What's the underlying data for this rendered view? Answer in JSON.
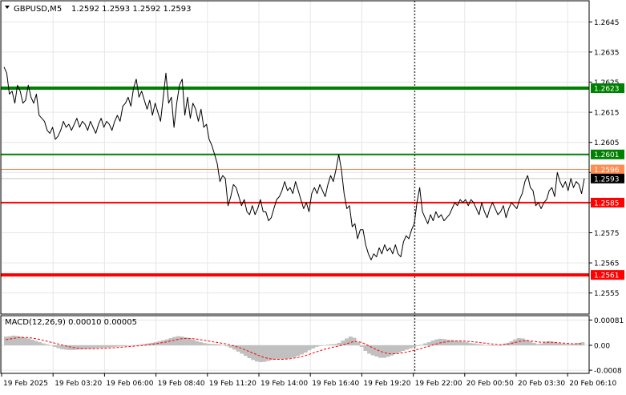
{
  "chart_data": [
    {
      "type": "line",
      "title": "GBPUSD,M5",
      "ohlc_readout": "1.2592 1.2593 1.2592 1.2593",
      "ylim": [
        1.2548,
        1.2652
      ],
      "yticks": [
        "1.2645",
        "1.2635",
        "1.2625",
        "1.2615",
        "1.2605",
        "1.2595",
        "1.2585",
        "1.2575",
        "1.2565",
        "1.2555"
      ],
      "xticks": [
        "19 Feb 2025",
        "19 Feb 03:20",
        "19 Feb 06:00",
        "19 Feb 08:40",
        "19 Feb 11:20",
        "19 Feb 14:00",
        "19 Feb 16:40",
        "19 Feb 19:20",
        "19 Feb 22:00",
        "20 Feb 00:50",
        "20 Feb 03:30",
        "20 Feb 06:10"
      ],
      "grid": true,
      "period_separator_after": "19 Feb 22:00",
      "current_price": 1.2593,
      "levels": [
        {
          "price": 1.2623,
          "label": "1.2623",
          "color": "#008000",
          "width": 4
        },
        {
          "price": 1.2601,
          "label": "1.2601",
          "color": "#008000",
          "width": 2
        },
        {
          "price": 1.2596,
          "label": "1.2596",
          "color": "#ff8c50",
          "width": 1
        },
        {
          "price": 1.2585,
          "label": "1.2585",
          "color": "#ff0000",
          "width": 2
        },
        {
          "price": 1.2561,
          "label": "1.2561",
          "color": "#ff0000",
          "width": 4
        }
      ],
      "series": [
        {
          "values": [
            1.263,
            1.2628,
            1.2621,
            1.2622,
            1.2618,
            1.2624,
            1.2622,
            1.2618,
            1.2619,
            1.2624,
            1.262,
            1.2618,
            1.2621,
            1.2614,
            1.2613,
            1.2612,
            1.2609,
            1.2608,
            1.261,
            1.2606,
            1.2607,
            1.2609,
            1.2612,
            1.261,
            1.2611,
            1.2609,
            1.2611,
            1.2613,
            1.261,
            1.2612,
            1.2611,
            1.2609,
            1.2612,
            1.261,
            1.2608,
            1.2611,
            1.2613,
            1.261,
            1.2612,
            1.2611,
            1.2609,
            1.2612,
            1.2614,
            1.2612,
            1.2617,
            1.2618,
            1.262,
            1.2617,
            1.2623,
            1.2626,
            1.262,
            1.2622,
            1.2619,
            1.2616,
            1.2619,
            1.2614,
            1.2618,
            1.2615,
            1.2612,
            1.262,
            1.2628,
            1.2618,
            1.262,
            1.261,
            1.2618,
            1.2624,
            1.2626,
            1.2614,
            1.262,
            1.2613,
            1.2618,
            1.2616,
            1.2612,
            1.2616,
            1.261,
            1.2611,
            1.2606,
            1.2604,
            1.2601,
            1.2598,
            1.2592,
            1.2594,
            1.2593,
            1.2584,
            1.2587,
            1.2591,
            1.259,
            1.2587,
            1.2584,
            1.2586,
            1.2582,
            1.2581,
            1.2584,
            1.2581,
            1.2583,
            1.2586,
            1.2582,
            1.2582,
            1.2579,
            1.258,
            1.2583,
            1.2586,
            1.2587,
            1.2589,
            1.2592,
            1.2589,
            1.259,
            1.2588,
            1.2592,
            1.2589,
            1.2586,
            1.2583,
            1.2585,
            1.2582,
            1.2588,
            1.259,
            1.2588,
            1.2591,
            1.2589,
            1.2587,
            1.2591,
            1.2594,
            1.2592,
            1.2596,
            1.2601,
            1.2596,
            1.2588,
            1.2583,
            1.2584,
            1.2577,
            1.2578,
            1.2573,
            1.2576,
            1.2576,
            1.2571,
            1.2568,
            1.2566,
            1.2568,
            1.2567,
            1.257,
            1.2568,
            1.2571,
            1.2569,
            1.257,
            1.2568,
            1.2571,
            1.2568,
            1.2567,
            1.2572,
            1.2574,
            1.2573,
            1.2576,
            1.2578,
            1.2585,
            1.259,
            1.2582,
            1.258,
            1.2578,
            1.2581,
            1.2579,
            1.2582,
            1.258,
            1.2581,
            1.2579,
            1.258,
            1.2581,
            1.2583,
            1.2585,
            1.2584,
            1.2586,
            1.2585,
            1.2586,
            1.2584,
            1.2586,
            1.2585,
            1.2583,
            1.2581,
            1.2585,
            1.2582,
            1.258,
            1.2583,
            1.2585,
            1.2583,
            1.2581,
            1.2582,
            1.2584,
            1.258,
            1.2583,
            1.2585,
            1.2584,
            1.2583,
            1.2586,
            1.2588,
            1.2592,
            1.2594,
            1.259,
            1.2589,
            1.2584,
            1.2585,
            1.2583,
            1.2585,
            1.2586,
            1.2589,
            1.259,
            1.2587,
            1.2595,
            1.2592,
            1.259,
            1.2592,
            1.2589,
            1.2593,
            1.259,
            1.2592,
            1.2591,
            1.2588,
            1.2593
          ]
        }
      ]
    },
    {
      "type": "area",
      "title": "MACD(12,26,9) 0.00010 0.00005",
      "ylim": [
        -0.0009,
        0.00095
      ],
      "yticks": [
        "0.00081",
        "0.00",
        "-0.0008"
      ],
      "series": [
        {
          "name": "MACD",
          "values": [
            0.00028,
            0.00029,
            0.00031,
            0.0003,
            0.00028,
            0.00025,
            0.00022,
            0.00018,
            0.00014,
            0.0001,
            6e-05,
            3e-05,
            -1e-05,
            -5e-05,
            -9e-05,
            -0.00012,
            -0.00014,
            -0.00015,
            -0.00015,
            -0.00014,
            -0.00013,
            -0.00012,
            -0.00011,
            -0.0001,
            -9e-05,
            -8e-05,
            -8e-05,
            -7e-05,
            -6e-05,
            -5e-05,
            -4e-05,
            -3e-05,
            -2e-05,
            -1e-05,
            0.0,
            1e-05,
            2e-05,
            4e-05,
            6e-05,
            8e-05,
            0.0001,
            0.00013,
            0.00016,
            0.00019,
            0.00023,
            0.00027,
            0.00029,
            0.00028,
            0.00025,
            0.00022,
            0.00018,
            0.00014,
            0.0001,
            7e-05,
            5e-05,
            4e-05,
            4e-05,
            3e-05,
            1e-05,
            -3e-05,
            -8e-05,
            -0.00014,
            -0.0002,
            -0.00027,
            -0.00034,
            -0.00041,
            -0.00047,
            -0.00052,
            -0.00054,
            -0.00053,
            -0.0005,
            -0.00047,
            -0.00045,
            -0.00044,
            -0.00044,
            -0.00043,
            -0.00041,
            -0.00038,
            -0.00034,
            -0.00029,
            -0.00023,
            -0.00016,
            -0.0001,
            -5e-05,
            -2e-05,
            0.0,
            2e-05,
            3e-05,
            4e-05,
            8e-05,
            0.00015,
            0.00022,
            0.00028,
            0.00024,
            0.0001,
            -5e-05,
            -0.00018,
            -0.00027,
            -0.00032,
            -0.00036,
            -0.0004,
            -0.0004,
            -0.00037,
            -0.00033,
            -0.00028,
            -0.00023,
            -0.00018,
            -0.00014,
            -0.0001,
            -6e-05,
            -2e-05,
            2e-05,
            6e-05,
            0.0001,
            0.00015,
            0.00019,
            0.00021,
            0.0002,
            0.00018,
            0.00017,
            0.00015,
            0.00014,
            0.00012,
            0.0001,
            7e-05,
            6e-05,
            4e-05,
            3e-05,
            1e-05,
            -1e-05,
            -2e-05,
            -1e-05,
            0.0,
            3e-05,
            7e-05,
            0.00013,
            0.00019,
            0.00023,
            0.00022,
            0.00018,
            0.00013,
            8e-05,
            4e-05,
            6e-05,
            0.00011,
            0.00013,
            0.00011,
            8e-05,
            6e-05,
            5e-05,
            4e-05,
            3e-05,
            5e-05,
            8e-05,
            0.0001
          ]
        },
        {
          "name": "Signal",
          "values": [
            0.00018,
            0.0002,
            0.00022,
            0.00024,
            0.00025,
            0.00025,
            0.00025,
            0.00023,
            0.00021,
            0.00019,
            0.00016,
            0.00013,
            0.0001,
            7e-05,
            4e-05,
            1e-05,
            -2e-05,
            -5e-05,
            -7e-05,
            -9e-05,
            -0.0001,
            -0.00011,
            -0.00011,
            -0.00011,
            -0.00011,
            -0.0001,
            -0.0001,
            -9e-05,
            -8e-05,
            -8e-05,
            -7e-05,
            -6e-05,
            -5e-05,
            -4e-05,
            -3e-05,
            -2e-05,
            -1e-05,
            0.0,
            2e-05,
            3e-05,
            5e-05,
            7e-05,
            9e-05,
            0.00011,
            0.00014,
            0.00016,
            0.00019,
            0.00021,
            0.00022,
            0.00022,
            0.00021,
            0.0002,
            0.00018,
            0.00016,
            0.00014,
            0.00012,
            0.0001,
            8e-05,
            6e-05,
            4e-05,
            1e-05,
            -2e-05,
            -6e-05,
            -0.0001,
            -0.00015,
            -0.0002,
            -0.00025,
            -0.0003,
            -0.00035,
            -0.00039,
            -0.00042,
            -0.00044,
            -0.00045,
            -0.00045,
            -0.00045,
            -0.00044,
            -0.00043,
            -0.00041,
            -0.00039,
            -0.00036,
            -0.00033,
            -0.00029,
            -0.00025,
            -0.00021,
            -0.00017,
            -0.00013,
            -0.0001,
            -7e-05,
            -5e-05,
            -2e-05,
            1e-05,
            5e-05,
            9e-05,
            0.00012,
            0.00012,
            9e-05,
            4e-05,
            -2e-05,
            -8e-05,
            -0.00014,
            -0.00019,
            -0.00023,
            -0.00026,
            -0.00027,
            -0.00027,
            -0.00026,
            -0.00024,
            -0.00022,
            -0.00019,
            -0.00016,
            -0.00013,
            -0.0001,
            -6e-05,
            -3e-05,
            1e-05,
            4e-05,
            8e-05,
            0.0001,
            0.00012,
            0.00013,
            0.00014,
            0.00014,
            0.00014,
            0.00013,
            0.00012,
            0.00011,
            0.0001,
            8e-05,
            7e-05,
            5e-05,
            4e-05,
            3e-05,
            2e-05,
            3e-05,
            4e-05,
            6e-05,
            9e-05,
            0.00012,
            0.00014,
            0.00015,
            0.00014,
            0.00013,
            0.00011,
            0.0001,
            0.0001,
            0.0001,
            0.0001,
            9e-05,
            8e-05,
            7e-05,
            6e-05,
            5e-05,
            5e-05,
            5e-05,
            5e-05
          ]
        }
      ]
    }
  ],
  "colors": {
    "price_line": "#000000",
    "macd_histogram": "#c0c0c0",
    "signal_line": "#ff0000",
    "grid": "#e6e6e6",
    "axis_label_current": "#000000"
  }
}
